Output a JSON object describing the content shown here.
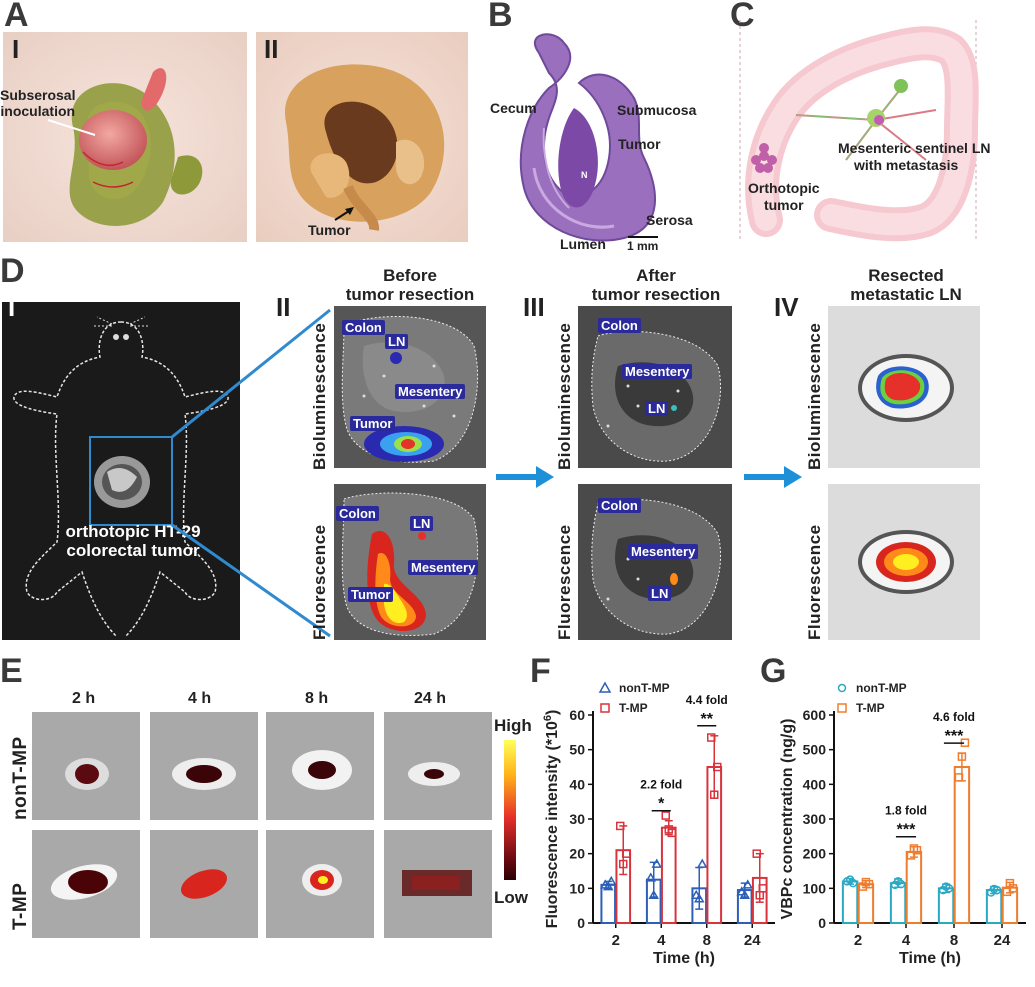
{
  "panels": {
    "A": "A",
    "B": "B",
    "C": "C",
    "D": "D",
    "E": "E",
    "F": "F",
    "G": "G"
  },
  "panel_a": {
    "sub_i": "I",
    "sub_ii": "II",
    "label_inoculation_l1": "Subserosal",
    "label_inoculation_l2": "inoculation",
    "label_tumor": "Tumor"
  },
  "panel_b": {
    "label_cecum": "Cecum",
    "label_submucosa": "Submucosa",
    "label_tumor": "Tumor",
    "label_serosa": "Serosa",
    "label_lumen": "Lumen",
    "label_n": "N",
    "scalebar": "1 mm"
  },
  "panel_c": {
    "label_ln_l1": "Mesenteric sentinel LN",
    "label_ln_l2": "with metastasis",
    "label_tumor_l1": "Orthotopic",
    "label_tumor_l2": "tumor"
  },
  "panel_d": {
    "sub_i": "I",
    "sub_ii": "II",
    "sub_iii": "III",
    "sub_iv": "IV",
    "head_ii_l1": "Before",
    "head_ii_l2": "tumor resection",
    "head_iii_l1": "After",
    "head_iii_l2": "tumor resection",
    "head_iv_l1": "Resected",
    "head_iv_l2": "metastatic LN",
    "mouse_label_l1": "orthotopic HT-29",
    "mouse_label_l2": "colorectal tumor",
    "row_bio": "Bioluminescence",
    "row_fluo": "Fluorescence",
    "tag_colon": "Colon",
    "tag_ln": "LN",
    "tag_mesentery": "Mesentery",
    "tag_tumor": "Tumor"
  },
  "panel_e": {
    "times": [
      "2 h",
      "4 h",
      "8 h",
      "24 h"
    ],
    "row_nont": "nonT-MP",
    "row_t": "T-MP",
    "scale_high": "High",
    "scale_low": "Low"
  },
  "chart_data": [
    {
      "type": "bar",
      "panel": "F",
      "categories": [
        "2",
        "4",
        "8",
        "24"
      ],
      "xlabel": "Time (h)",
      "ylabel": "Fluorescence intensity (*10",
      "ylabel_sup": "6",
      "ylabel_end": ")",
      "ylim": [
        0,
        60
      ],
      "yticks": [
        0,
        10,
        20,
        30,
        40,
        50,
        60
      ],
      "series": [
        {
          "name": "nonT-MP",
          "color": "#2b5fb8",
          "values": [
            11,
            12.5,
            10,
            9.5
          ],
          "errors": [
            1,
            5,
            6,
            2
          ],
          "points": [
            [
              11,
              10.5,
              12
            ],
            [
              13,
              8,
              17
            ],
            [
              8,
              7,
              17
            ],
            [
              9,
              8,
              11
            ]
          ]
        },
        {
          "name": "T-MP",
          "color": "#d9333b",
          "values": [
            21,
            27.5,
            45,
            13
          ],
          "errors": [
            7,
            2,
            9,
            7
          ],
          "points": [
            [
              28,
              17,
              20
            ],
            [
              31,
              27,
              26
            ],
            [
              53.5,
              37,
              45
            ],
            [
              20,
              8,
              10
            ]
          ]
        }
      ],
      "annotations": [
        {
          "category": "4",
          "fold": "2.2 fold",
          "sig": "*"
        },
        {
          "category": "8",
          "fold": "4.4 fold",
          "sig": "**"
        }
      ],
      "legend": "top-left"
    },
    {
      "type": "bar",
      "panel": "G",
      "categories": [
        "2",
        "4",
        "8",
        "24"
      ],
      "xlabel": "Time (h)",
      "ylabel": "VBPc concentration (ng/g)",
      "ylim": [
        0,
        600
      ],
      "yticks": [
        0,
        100,
        200,
        300,
        400,
        500,
        600
      ],
      "series": [
        {
          "name": "nonT-MP",
          "color": "#2aa8c4",
          "values": [
            120,
            115,
            100,
            95
          ],
          "errors": [
            8,
            12,
            12,
            10
          ],
          "points": [
            [
              120,
              125,
              115
            ],
            [
              110,
              120,
              112
            ],
            [
              95,
              105,
              100
            ],
            [
              88,
              98,
              95
            ]
          ]
        },
        {
          "name": "T-MP",
          "color": "#ef7d2e",
          "values": [
            112,
            205,
            450,
            102
          ],
          "errors": [
            10,
            15,
            40,
            15
          ],
          "points": [
            [
              105,
              118,
              112
            ],
            [
              195,
              215,
              210
            ],
            [
              420,
              480,
              520
            ],
            [
              90,
              115,
              100
            ]
          ]
        }
      ],
      "annotations": [
        {
          "category": "4",
          "fold": "1.8 fold",
          "sig": "***"
        },
        {
          "category": "8",
          "fold": "4.6 fold",
          "sig": "***"
        }
      ],
      "legend": "top-left"
    }
  ]
}
